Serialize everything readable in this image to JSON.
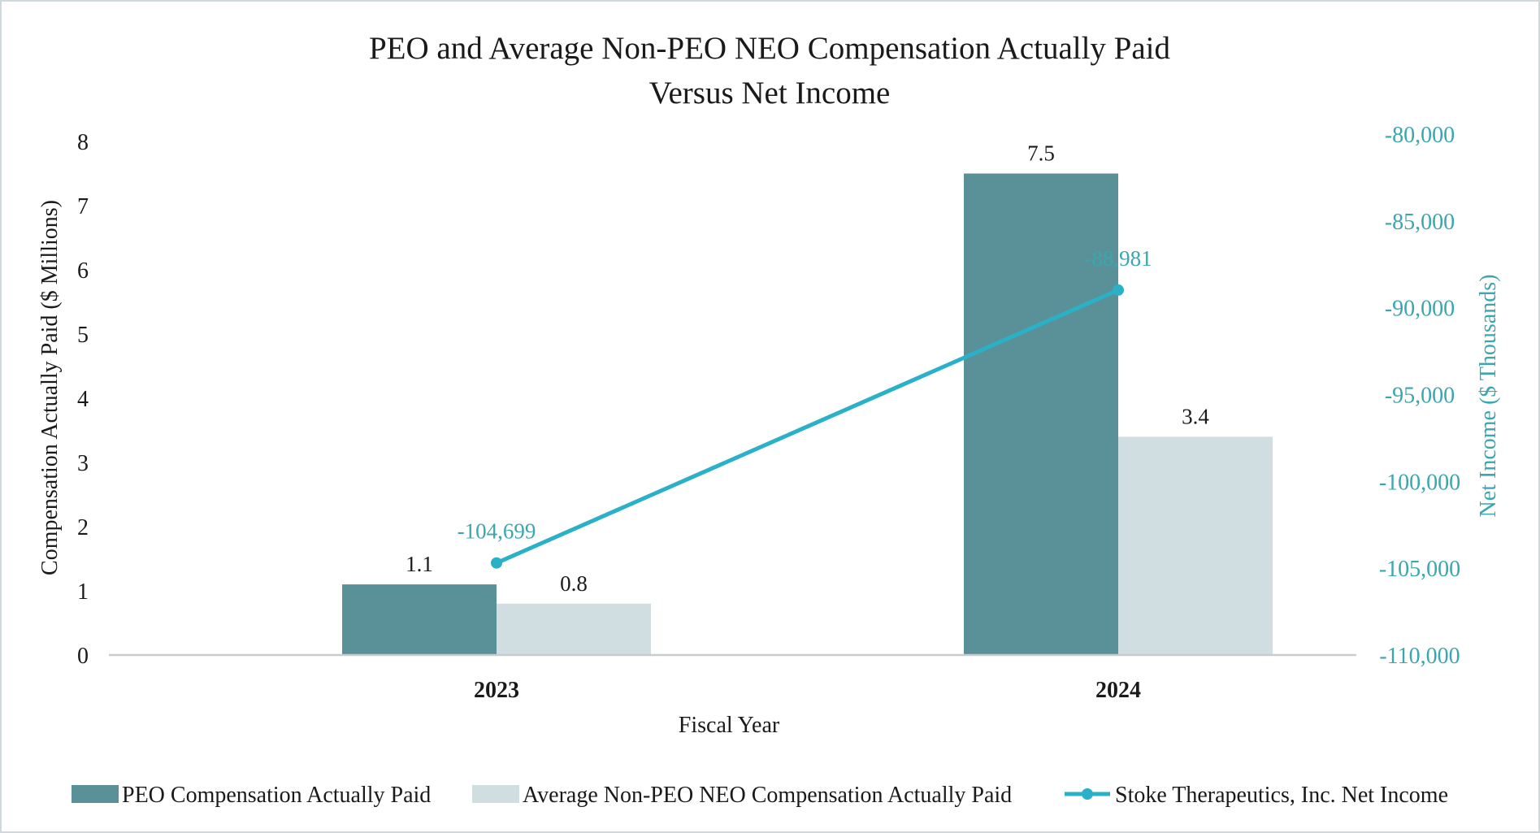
{
  "chart_data": {
    "type": "bar",
    "title_lines": [
      "PEO and Average Non-PEO NEO Compensation Actually Paid",
      "Versus Net Income"
    ],
    "xlabel": "Fiscal Year",
    "ylabel": "Compensation Actually Paid ($ Millions)",
    "y2label": "Net Income ($ Thousands)",
    "categories": [
      "2023",
      "2024"
    ],
    "ylim": [
      0,
      8
    ],
    "yticks": [
      "0",
      "1",
      "2",
      "3",
      "4",
      "5",
      "6",
      "7",
      "8"
    ],
    "y2lim": [
      -110000,
      -80000
    ],
    "y2ticks": [
      "-110,000",
      "-105,000",
      "-100,000",
      "-95,000",
      "-90,000",
      "-85,000",
      "-80,000"
    ],
    "series": [
      {
        "name": "PEO Compensation Actually Paid",
        "kind": "bar",
        "axis": "left",
        "color": "#5a9097",
        "values": [
          1.1,
          7.5
        ],
        "labels": [
          "1.1",
          "7.5"
        ]
      },
      {
        "name": "Average Non-PEO NEO Compensation Actually Paid",
        "kind": "bar",
        "axis": "left",
        "color": "#d0dde1",
        "values": [
          0.8,
          3.4
        ],
        "labels": [
          "0.8",
          "3.4"
        ]
      },
      {
        "name": "Stoke Therapeutics, Inc. Net Income",
        "kind": "line",
        "axis": "right",
        "color": "#2ab1c8",
        "values": [
          -104699,
          -88981
        ],
        "labels": [
          "-104,699",
          "-88,981"
        ]
      }
    ],
    "axis_color_right": "#3aa6ad",
    "grid": false,
    "legend_position": "bottom"
  }
}
